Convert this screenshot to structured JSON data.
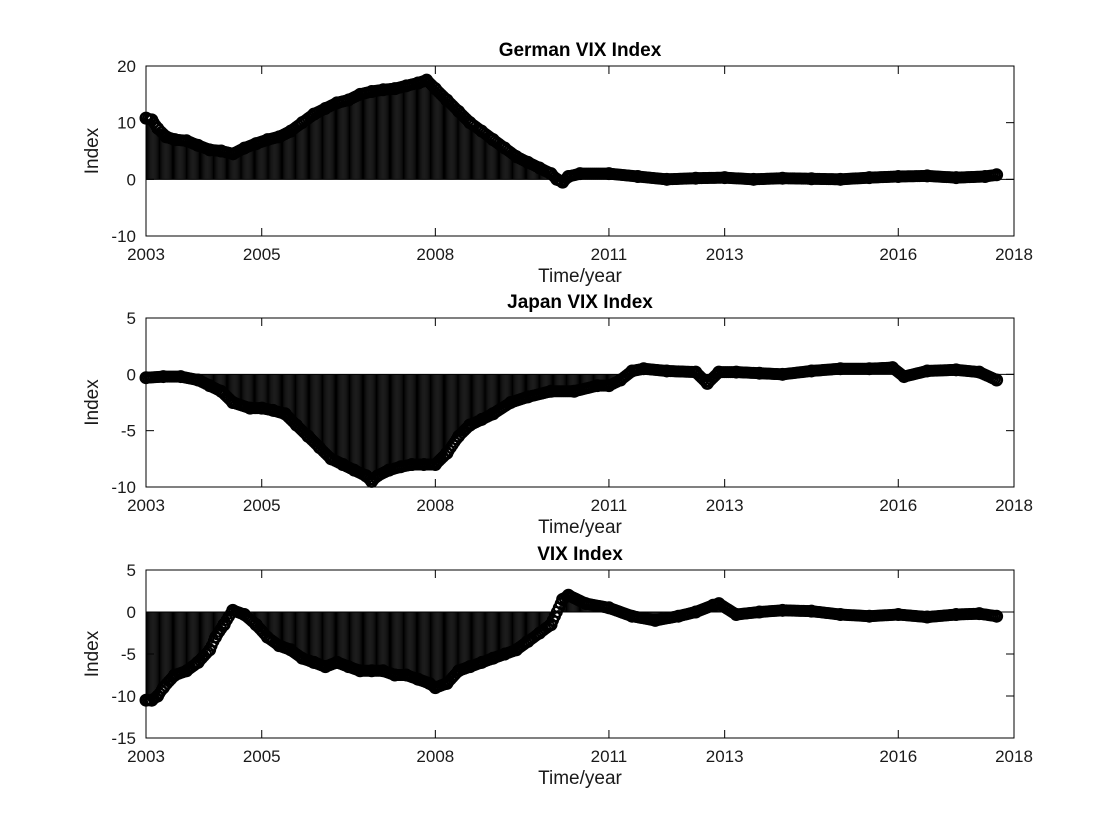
{
  "chart_data": [
    {
      "type": "area",
      "title": "German VIX Index",
      "xlabel": "Time/year",
      "ylabel": "Index",
      "xlim": [
        2003,
        2018
      ],
      "ylim": [
        -10,
        20
      ],
      "xticks": [
        "2003",
        "2005",
        "2008",
        "2011",
        "2013",
        "2016",
        "2018"
      ],
      "yticks": [
        "-10",
        "0",
        "10",
        "20"
      ],
      "grid": false,
      "series": [
        {
          "x": [
            2003.0,
            2003.1,
            2003.2,
            2003.35,
            2003.5,
            2003.7,
            2003.9,
            2004.1,
            2004.3,
            2004.5,
            2004.7,
            2004.9,
            2005.1,
            2005.3,
            2005.5,
            2005.7,
            2005.9,
            2006.1,
            2006.3,
            2006.5,
            2006.7,
            2006.9,
            2007.1,
            2007.3,
            2007.5,
            2007.7,
            2007.85,
            2008.0,
            2008.2,
            2008.4,
            2008.6,
            2008.8,
            2009.0,
            2009.2,
            2009.4,
            2009.6,
            2009.8,
            2010.0,
            2010.1,
            2010.2,
            2010.3,
            2010.5,
            2011.0,
            2011.5,
            2012.0,
            2012.5,
            2013.0,
            2013.5,
            2014.0,
            2014.5,
            2015.0,
            2015.5,
            2016.0,
            2016.5,
            2017.0,
            2017.5,
            2017.7
          ],
          "y": [
            10.8,
            10.5,
            9.0,
            7.5,
            7.0,
            6.8,
            6.0,
            5.2,
            5.0,
            4.5,
            5.5,
            6.3,
            7.0,
            7.5,
            8.5,
            10.0,
            11.5,
            12.5,
            13.5,
            14.0,
            15.0,
            15.5,
            15.8,
            16.0,
            16.5,
            17.0,
            17.5,
            16.0,
            14.0,
            12.0,
            10.0,
            8.5,
            7.0,
            5.5,
            4.0,
            3.0,
            2.0,
            1.0,
            0.0,
            -0.5,
            0.5,
            1.0,
            1.0,
            0.5,
            0.0,
            0.2,
            0.3,
            0.0,
            0.2,
            0.1,
            0.0,
            0.3,
            0.5,
            0.6,
            0.3,
            0.5,
            0.8
          ]
        }
      ]
    },
    {
      "type": "area",
      "title": "Japan VIX Index",
      "xlabel": "Time/year",
      "ylabel": "Index",
      "xlim": [
        2003,
        2018
      ],
      "ylim": [
        -10,
        5
      ],
      "xticks": [
        "2003",
        "2005",
        "2008",
        "2011",
        "2013",
        "2016",
        "2018"
      ],
      "yticks": [
        "-10",
        "-5",
        "0",
        "5"
      ],
      "grid": false,
      "series": [
        {
          "x": [
            2003.0,
            2003.3,
            2003.6,
            2003.9,
            2004.1,
            2004.3,
            2004.5,
            2004.8,
            2005.0,
            2005.2,
            2005.4,
            2005.6,
            2005.8,
            2006.0,
            2006.2,
            2006.4,
            2006.6,
            2006.8,
            2006.9,
            2007.0,
            2007.2,
            2007.4,
            2007.6,
            2007.8,
            2008.0,
            2008.2,
            2008.4,
            2008.6,
            2008.8,
            2009.0,
            2009.3,
            2009.6,
            2010.0,
            2010.4,
            2010.8,
            2011.0,
            2011.2,
            2011.4,
            2011.6,
            2012.0,
            2012.5,
            2012.7,
            2012.9,
            2013.2,
            2013.6,
            2014.0,
            2014.5,
            2015.0,
            2015.5,
            2015.9,
            2016.1,
            2016.5,
            2017.0,
            2017.4,
            2017.7
          ],
          "y": [
            -0.3,
            -0.2,
            -0.2,
            -0.5,
            -1.0,
            -1.5,
            -2.5,
            -3.0,
            -3.0,
            -3.2,
            -3.5,
            -4.5,
            -5.5,
            -6.5,
            -7.5,
            -8.0,
            -8.5,
            -9.0,
            -9.5,
            -9.0,
            -8.5,
            -8.2,
            -8.0,
            -8.0,
            -8.0,
            -7.0,
            -5.5,
            -4.5,
            -4.0,
            -3.5,
            -2.5,
            -2.0,
            -1.5,
            -1.5,
            -1.0,
            -1.0,
            -0.5,
            0.3,
            0.5,
            0.3,
            0.2,
            -0.8,
            0.2,
            0.2,
            0.1,
            0.0,
            0.3,
            0.5,
            0.5,
            0.6,
            -0.2,
            0.3,
            0.4,
            0.2,
            -0.5
          ]
        }
      ]
    },
    {
      "type": "area",
      "title": "VIX Index",
      "xlabel": "Time/year",
      "ylabel": "Index",
      "xlim": [
        2003,
        2018
      ],
      "ylim": [
        -15,
        5
      ],
      "xticks": [
        "2003",
        "2005",
        "2008",
        "2011",
        "2013",
        "2016",
        "2018"
      ],
      "yticks": [
        "-15",
        "-10",
        "-5",
        "0",
        "5"
      ],
      "grid": false,
      "series": [
        {
          "x": [
            2003.0,
            2003.1,
            2003.2,
            2003.3,
            2003.5,
            2003.7,
            2003.9,
            2004.1,
            2004.2,
            2004.35,
            2004.5,
            2004.7,
            2004.9,
            2005.1,
            2005.3,
            2005.5,
            2005.7,
            2005.9,
            2006.1,
            2006.3,
            2006.5,
            2006.7,
            2006.9,
            2007.1,
            2007.3,
            2007.5,
            2007.7,
            2007.9,
            2008.0,
            2008.2,
            2008.4,
            2008.6,
            2008.8,
            2009.0,
            2009.2,
            2009.4,
            2009.6,
            2009.8,
            2010.0,
            2010.2,
            2010.3,
            2010.6,
            2011.0,
            2011.4,
            2011.8,
            2012.2,
            2012.5,
            2012.8,
            2012.9,
            2013.2,
            2013.6,
            2014.0,
            2014.5,
            2015.0,
            2015.5,
            2016.0,
            2016.5,
            2017.0,
            2017.4,
            2017.7
          ],
          "y": [
            -10.5,
            -10.5,
            -10.0,
            -9.0,
            -7.5,
            -7.0,
            -6.0,
            -4.5,
            -3.0,
            -1.5,
            0.2,
            -0.3,
            -1.5,
            -3.0,
            -4.0,
            -4.5,
            -5.5,
            -6.0,
            -6.5,
            -6.0,
            -6.5,
            -7.0,
            -7.0,
            -7.0,
            -7.5,
            -7.5,
            -8.0,
            -8.5,
            -9.0,
            -8.5,
            -7.0,
            -6.5,
            -6.0,
            -5.5,
            -5.0,
            -4.5,
            -3.5,
            -2.5,
            -1.5,
            1.5,
            2.0,
            1.0,
            0.5,
            -0.5,
            -1.0,
            -0.5,
            0.0,
            0.8,
            1.0,
            -0.3,
            0.0,
            0.2,
            0.1,
            -0.3,
            -0.5,
            -0.3,
            -0.6,
            -0.3,
            -0.2,
            -0.5
          ]
        }
      ]
    }
  ]
}
